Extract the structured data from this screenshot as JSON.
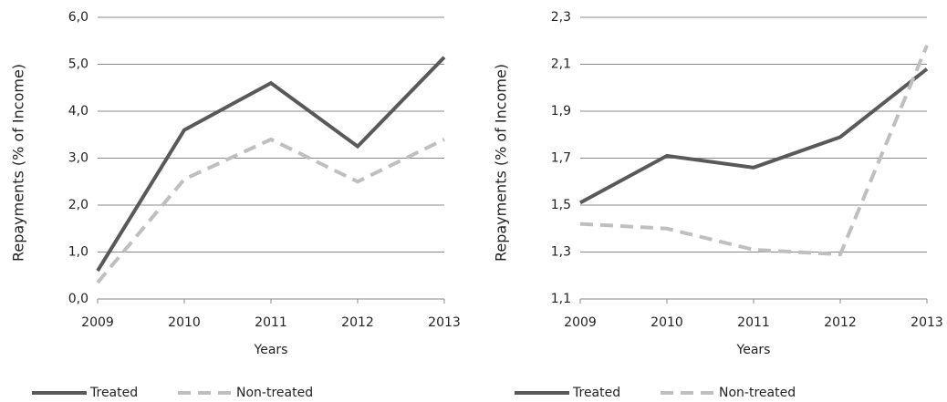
{
  "chart_data": [
    {
      "type": "line",
      "x_label": "Years",
      "y_label": "Repayments (% of Income)",
      "x": [
        2009,
        2010,
        2011,
        2012,
        2013
      ],
      "xlim": [
        2009,
        2013
      ],
      "xticks": [
        2009,
        2010,
        2011,
        2012,
        2013
      ],
      "ylim": [
        0,
        6
      ],
      "yticks": [
        {
          "value": 0,
          "label": "0,0"
        },
        {
          "value": 1,
          "label": "1,0"
        },
        {
          "value": 2,
          "label": "2,0"
        },
        {
          "value": 3,
          "label": "3,0"
        },
        {
          "value": 4,
          "label": "4,0"
        },
        {
          "value": 5,
          "label": "5,0"
        },
        {
          "value": 6,
          "label": "6,0"
        }
      ],
      "grid": true,
      "legend": "bottom",
      "series": [
        {
          "name": "Treated",
          "color": "#595959",
          "line_style": "solid",
          "values": [
            0.6,
            3.6,
            4.6,
            3.25,
            5.15
          ]
        },
        {
          "name": "Non-treated",
          "color": "#bfbfbf",
          "line_style": "dashed",
          "values": [
            0.35,
            2.55,
            3.4,
            2.5,
            3.4
          ]
        }
      ]
    },
    {
      "type": "line",
      "x_label": "Years",
      "y_label": "Repayments (% of Income)",
      "x": [
        2009,
        2010,
        2011,
        2012,
        2013
      ],
      "xlim": [
        2009,
        2013
      ],
      "xticks": [
        2009,
        2010,
        2011,
        2012,
        2013
      ],
      "ylim": [
        1.1,
        2.3
      ],
      "yticks": [
        {
          "value": 1.1,
          "label": "1,1"
        },
        {
          "value": 1.3,
          "label": "1,3"
        },
        {
          "value": 1.5,
          "label": "1,5"
        },
        {
          "value": 1.7,
          "label": "1,7"
        },
        {
          "value": 1.9,
          "label": "1,9"
        },
        {
          "value": 2.1,
          "label": "2,1"
        },
        {
          "value": 2.3,
          "label": "2,3"
        }
      ],
      "grid": true,
      "legend": "bottom",
      "series": [
        {
          "name": "Treated",
          "color": "#595959",
          "line_style": "solid",
          "values": [
            1.51,
            1.71,
            1.66,
            1.79,
            2.08
          ]
        },
        {
          "name": "Non-treated",
          "color": "#bfbfbf",
          "line_style": "dashed",
          "values": [
            1.42,
            1.4,
            1.31,
            1.29,
            2.18
          ]
        }
      ]
    }
  ]
}
